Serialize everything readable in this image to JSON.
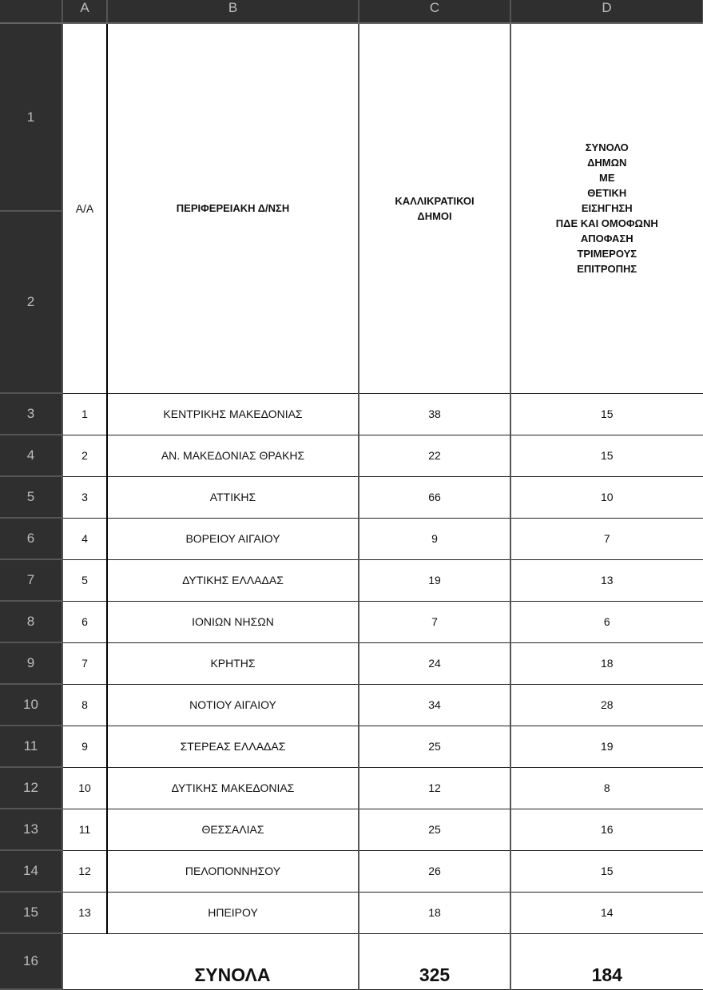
{
  "columns": [
    "A",
    "B",
    "C",
    "D"
  ],
  "row_numbers": [
    "1",
    "2",
    "3",
    "4",
    "5",
    "6",
    "7",
    "8",
    "9",
    "10",
    "11",
    "12",
    "13",
    "14",
    "15",
    "16"
  ],
  "header": {
    "aa": "Α/Α",
    "region": "ΠΕΡΙΦΕΡΕΙΑΚΗ Δ/ΝΣΗ",
    "municipalities": "ΚΑΛΛΙΚΡΑΤΙΚΟΙ\nΔΗΜΟΙ",
    "positive": "ΣΥΝΟΛΟ\nΔΗΜΩΝ\nΜΕ\nΘΕΤΙΚΗ\nΕΙΣΗΓΗΣΗ\nΠΔΕ ΚΑΙ ΟΜΟΦΩΝΗ\nΑΠΟΦΑΣΗ\nΤΡΙΜΕΡΟΥΣ\nΕΠΙΤΡΟΠΗΣ"
  },
  "rows": [
    {
      "aa": "1",
      "region": "ΚΕΝΤΡΙΚΗΣ ΜΑΚΕΔΟΝΙΑΣ",
      "municipalities": "38",
      "positive": "15"
    },
    {
      "aa": "2",
      "region": "ΑΝ. ΜΑΚΕΔΟΝΙΑΣ ΘΡΑΚΗΣ",
      "municipalities": "22",
      "positive": "15"
    },
    {
      "aa": "3",
      "region": "ΑΤΤΙΚΗΣ",
      "municipalities": "66",
      "positive": "10"
    },
    {
      "aa": "4",
      "region": "ΒΟΡΕΙΟΥ ΑΙΓΑΙΟΥ",
      "municipalities": "9",
      "positive": "7"
    },
    {
      "aa": "5",
      "region": "ΔΥΤΙΚΗΣ ΕΛΛΑΔΑΣ",
      "municipalities": "19",
      "positive": "13"
    },
    {
      "aa": "6",
      "region": "ΙΟΝΙΩΝ ΝΗΣΩΝ",
      "municipalities": "7",
      "positive": "6"
    },
    {
      "aa": "7",
      "region": "ΚΡΗΤΗΣ",
      "municipalities": "24",
      "positive": "18"
    },
    {
      "aa": "8",
      "region": "ΝΟΤΙΟΥ ΑΙΓΑΙΟΥ",
      "municipalities": "34",
      "positive": "28"
    },
    {
      "aa": "9",
      "region": "ΣΤΕΡΕΑΣ ΕΛΛΑΔΑΣ",
      "municipalities": "25",
      "positive": "19"
    },
    {
      "aa": "10",
      "region": "ΔΥΤΙΚΗΣ ΜΑΚΕΔΟΝΙΑΣ",
      "municipalities": "12",
      "positive": "8"
    },
    {
      "aa": "11",
      "region": "ΘΕΣΣΑΛΙΑΣ",
      "municipalities": "25",
      "positive": "16"
    },
    {
      "aa": "12",
      "region": "ΠΕΛΟΠΟΝΝΗΣΟΥ",
      "municipalities": "26",
      "positive": "15"
    },
    {
      "aa": "13",
      "region": "ΗΠΕΙΡΟΥ",
      "municipalities": "18",
      "positive": "14"
    }
  ],
  "totals": {
    "label": "ΣΥΝΟΛΑ",
    "municipalities": "325",
    "positive": "184"
  }
}
